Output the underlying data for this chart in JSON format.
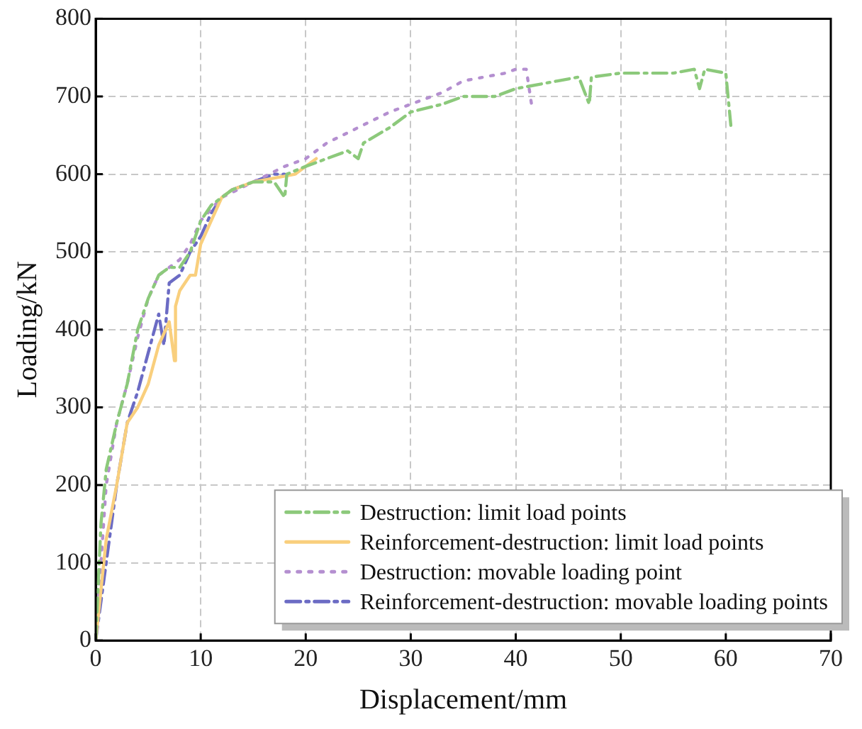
{
  "chart_data": {
    "type": "line",
    "xlabel": "Displacement/mm",
    "ylabel": "Loading/kN",
    "xlim": [
      0,
      70
    ],
    "xticks": [
      0,
      10,
      20,
      30,
      40,
      50,
      60,
      70
    ],
    "ylim": [
      0,
      800
    ],
    "yticks": [
      0,
      100,
      200,
      300,
      400,
      500,
      600,
      700,
      800
    ],
    "grid": true,
    "legend": "bottom right",
    "marker": "none",
    "series": [
      {
        "name": "Destruction: limit load points",
        "color": "#8cc97b",
        "line_style": "dashed",
        "x": [
          0,
          0.5,
          1,
          2,
          3,
          4,
          5,
          6,
          6.5,
          7,
          8,
          9,
          10,
          11,
          12,
          13,
          15,
          17,
          18,
          18.2,
          20,
          22,
          24,
          25,
          25.5,
          28,
          30,
          33,
          35,
          38,
          40,
          44,
          46,
          47,
          47.2,
          50,
          55,
          57,
          57.5,
          58,
          60,
          60.5
        ],
        "values": [
          0,
          150,
          220,
          280,
          330,
          400,
          440,
          470,
          475,
          480,
          480,
          500,
          540,
          560,
          570,
          580,
          590,
          590,
          570,
          600,
          610,
          620,
          630,
          620,
          640,
          660,
          680,
          690,
          700,
          700,
          710,
          720,
          725,
          690,
          725,
          730,
          730,
          735,
          710,
          735,
          730,
          660
        ]
      },
      {
        "name": "Reinforcement-destruction: limit load points",
        "color": "#f9cf7d",
        "line_style": "solid",
        "x": [
          0,
          1,
          2,
          3,
          4,
          5,
          6,
          7,
          7.5,
          7.6,
          8,
          9,
          9.5,
          10,
          11,
          12,
          13,
          15,
          17,
          19,
          21
        ],
        "values": [
          0,
          130,
          200,
          280,
          300,
          330,
          380,
          410,
          360,
          430,
          450,
          470,
          470,
          510,
          540,
          570,
          580,
          590,
          595,
          600,
          620
        ]
      },
      {
        "name": "Destruction: movable loading point",
        "color": "#b48fd0",
        "line_style": "dotted",
        "x": [
          0,
          1,
          2,
          3,
          4,
          5,
          6,
          7,
          8,
          9,
          10,
          12,
          15,
          18,
          20,
          22,
          25,
          28,
          30,
          33,
          35,
          37,
          39,
          40,
          41,
          41.5
        ],
        "values": [
          0,
          200,
          280,
          330,
          390,
          440,
          470,
          480,
          490,
          510,
          540,
          570,
          590,
          610,
          620,
          640,
          660,
          680,
          690,
          705,
          720,
          725,
          730,
          735,
          735,
          690
        ]
      },
      {
        "name": "Reinforcement-destruction: movable loading points",
        "color": "#6b6bc4",
        "line_style": "dashed",
        "x": [
          0,
          1,
          2,
          3,
          4,
          5,
          6,
          6.5,
          7,
          8,
          9,
          10,
          11,
          12,
          13,
          15,
          17,
          18
        ],
        "values": [
          0,
          100,
          200,
          280,
          320,
          370,
          420,
          380,
          460,
          470,
          500,
          520,
          550,
          570,
          580,
          590,
          600,
          600
        ]
      }
    ]
  }
}
